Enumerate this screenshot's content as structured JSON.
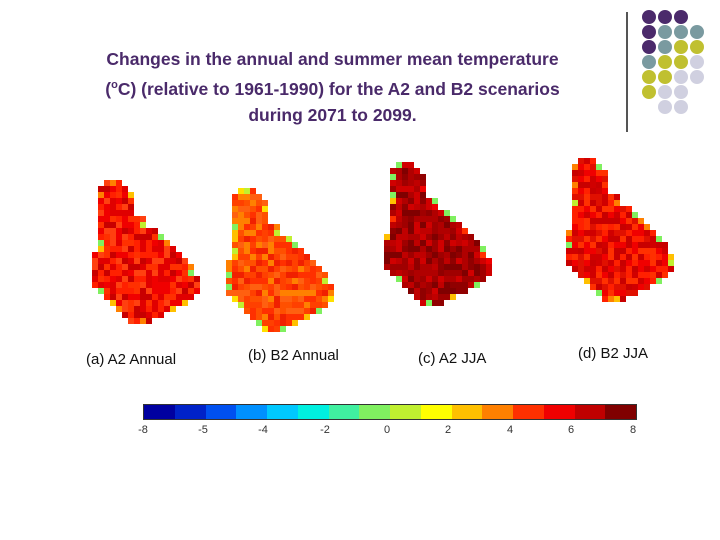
{
  "title_lines": [
    "Changes in the annual and summer mean temperature",
    "C) (relative to 1961-1990) for the A2 and B2 scenarios",
    "during 2071 to 2099."
  ],
  "title_prefix": "(",
  "title_sup": "o",
  "panels": [
    {
      "label": "(a) A2 Annual"
    },
    {
      "label": "(b) B2 Annual"
    },
    {
      "label": "(c) A2 JJA"
    },
    {
      "label": "(d) B2 JJA"
    }
  ],
  "colorbar": {
    "colors": [
      "#0000a0",
      "#0022c8",
      "#0050f0",
      "#0090ff",
      "#00c8ff",
      "#00f0e0",
      "#40f0a0",
      "#80f060",
      "#c0f030",
      "#ffff00",
      "#ffc000",
      "#ff8000",
      "#ff3000",
      "#f00000",
      "#c00000",
      "#800000"
    ],
    "tick_labels": [
      "-8",
      "-5",
      "-4",
      "-2",
      "0",
      "2",
      "4",
      "6",
      "8"
    ]
  },
  "decor": {
    "dot_colors": {
      "purple": "#4b2a6b",
      "teal": "#7a9aa0",
      "olive": "#c0c030",
      "gray": "#d0d0e0"
    }
  }
}
